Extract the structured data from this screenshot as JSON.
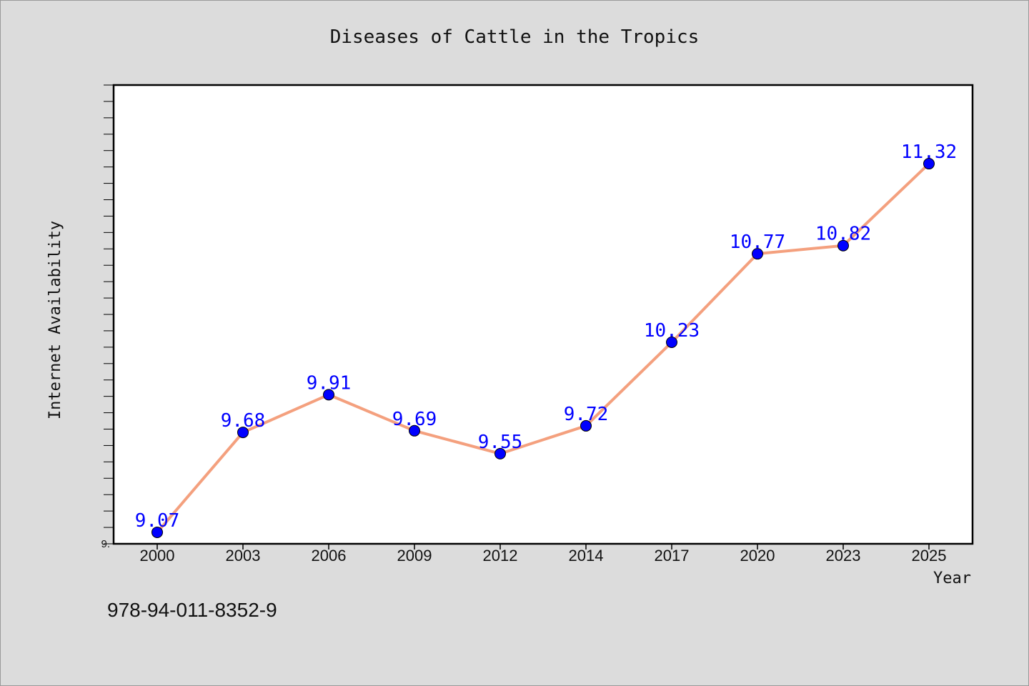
{
  "chart_data": {
    "type": "line",
    "title": "Diseases of Cattle in the Tropics",
    "xlabel": "Year",
    "ylabel": "Internet Availability",
    "categories": [
      "2000",
      "2003",
      "2006",
      "2009",
      "2012",
      "2014",
      "2017",
      "2020",
      "2023",
      "2025"
    ],
    "series": [
      {
        "values": [
          9.07,
          9.68,
          9.91,
          9.69,
          9.55,
          9.72,
          10.23,
          10.77,
          10.82,
          11.32
        ],
        "data_labels": [
          "9.07",
          "9.68",
          "9.91",
          "9.69",
          "9.55",
          "9.72",
          "10.23",
          "10.77",
          "10.82",
          "11.32"
        ]
      }
    ],
    "ylim": [
      9.0,
      11.8
    ],
    "y_tick_label": "9.",
    "grid": false,
    "legend": "none",
    "colors": {
      "line": "#f4a07e",
      "marker": "#0000ff",
      "data_label": "#0000ff",
      "plot_background": "#ffffff",
      "figure_background": "#dcdcdc"
    }
  },
  "footer": {
    "isbn": "978-94-011-8352-9"
  }
}
